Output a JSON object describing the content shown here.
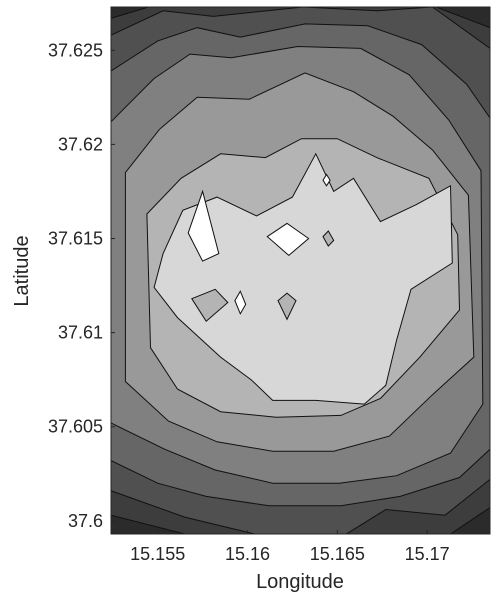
{
  "chart_data": {
    "type": "contour",
    "title": "",
    "xlabel": "Longitude",
    "ylabel": "Latitude",
    "xlim": [
      15.1524,
      15.1735
    ],
    "ylim": [
      37.5993,
      37.6273
    ],
    "xticks": [
      15.155,
      15.16,
      15.165,
      15.17
    ],
    "xtick_labels": [
      "15.155",
      "15.16",
      "15.165",
      "15.17"
    ],
    "yticks": [
      37.6,
      37.605,
      37.61,
      37.615,
      37.62,
      37.625
    ],
    "ytick_labels": [
      "37.6",
      "37.605",
      "37.61",
      "37.615",
      "37.62",
      "37.625"
    ],
    "colormap": "gray",
    "grid": false,
    "legend": "none",
    "levels": [
      {
        "level": 1,
        "fill": "#2b2b2b",
        "contours": [
          [
            [
              15.1524,
              37.6273
            ],
            [
              15.1735,
              37.6273
            ],
            [
              15.1735,
              37.5993
            ],
            [
              15.1524,
              37.5993
            ]
          ]
        ]
      },
      {
        "level": 2,
        "fill": "#3d3d3d",
        "contours": [
          [
            [
              15.1524,
              37.6267
            ],
            [
              15.1545,
              37.6273
            ],
            [
              15.1705,
              37.6273
            ],
            [
              15.1735,
              37.6262
            ],
            [
              15.1735,
              37.6007
            ],
            [
              15.1713,
              37.5993
            ],
            [
              15.1565,
              37.5993
            ],
            [
              15.1524,
              37.6003
            ]
          ]
        ]
      },
      {
        "level": 3,
        "fill": "#505050",
        "contours": [
          [
            [
              15.1524,
              37.6258
            ],
            [
              15.1553,
              37.6271
            ],
            [
              15.1581,
              37.6268
            ],
            [
              15.1631,
              37.6273
            ],
            [
              15.1672,
              37.6271
            ],
            [
              15.1703,
              37.6273
            ],
            [
              15.1735,
              37.6251
            ],
            [
              15.1735,
              37.6022
            ],
            [
              15.171,
              37.6003
            ],
            [
              15.1677,
              37.6006
            ],
            [
              15.1655,
              37.5993
            ],
            [
              15.1604,
              37.5993
            ],
            [
              15.1565,
              37.6002
            ],
            [
              15.1524,
              37.6016
            ]
          ]
        ]
      },
      {
        "level": 4,
        "fill": "#666666",
        "contours": [
          [
            [
              15.1524,
              37.6239
            ],
            [
              15.155,
              37.6255
            ],
            [
              15.1572,
              37.6262
            ],
            [
              15.1596,
              37.6257
            ],
            [
              15.1632,
              37.6264
            ],
            [
              15.1667,
              37.6263
            ],
            [
              15.1697,
              37.6253
            ],
            [
              15.1722,
              37.6232
            ],
            [
              15.1735,
              37.6214
            ],
            [
              15.1735,
              37.6038
            ],
            [
              15.1718,
              37.6023
            ],
            [
              15.1685,
              37.6013
            ],
            [
              15.1652,
              37.6008
            ],
            [
              15.1612,
              37.6008
            ],
            [
              15.1577,
              37.6013
            ],
            [
              15.155,
              37.602
            ],
            [
              15.1524,
              37.6032
            ]
          ]
        ]
      },
      {
        "level": 5,
        "fill": "#808080",
        "contours": [
          [
            [
              15.1524,
              37.6212
            ],
            [
              15.1548,
              37.6235
            ],
            [
              15.1568,
              37.6248
            ],
            [
              15.1591,
              37.6246
            ],
            [
              15.1628,
              37.6252
            ],
            [
              15.1663,
              37.6251
            ],
            [
              15.169,
              37.6237
            ],
            [
              15.1712,
              37.6213
            ],
            [
              15.173,
              37.6186
            ],
            [
              15.1731,
              37.6062
            ],
            [
              15.1713,
              37.6036
            ],
            [
              15.1683,
              37.6024
            ],
            [
              15.1651,
              37.602
            ],
            [
              15.1614,
              37.602
            ],
            [
              15.1582,
              37.6027
            ],
            [
              15.1554,
              37.6038
            ],
            [
              15.1524,
              37.6052
            ]
          ]
        ]
      },
      {
        "level": 6,
        "fill": "#999999",
        "contours": [
          [
            [
              15.1532,
              37.6185
            ],
            [
              15.1551,
              37.6208
            ],
            [
              15.1572,
              37.6225
            ],
            [
              15.1601,
              37.6224
            ],
            [
              15.1632,
              37.6238
            ],
            [
              15.1659,
              37.6228
            ],
            [
              15.1681,
              37.6215
            ],
            [
              15.1703,
              37.6197
            ],
            [
              15.1723,
              37.6173
            ],
            [
              15.1726,
              37.6087
            ],
            [
              15.1703,
              37.6067
            ],
            [
              15.1679,
              37.6045
            ],
            [
              15.1648,
              37.6037
            ],
            [
              15.1614,
              37.6037
            ],
            [
              15.1583,
              37.6042
            ],
            [
              15.1556,
              37.6053
            ],
            [
              15.1532,
              37.6074
            ]
          ]
        ]
      },
      {
        "level": 7,
        "fill": "#b4b4b4",
        "contours": [
          [
            [
              15.1544,
              37.6163
            ],
            [
              15.1563,
              37.6182
            ],
            [
              15.1585,
              37.6195
            ],
            [
              15.161,
              37.6193
            ],
            [
              15.163,
              37.6203
            ],
            [
              15.165,
              37.6203
            ],
            [
              15.1672,
              37.6193
            ],
            [
              15.1701,
              37.6182
            ],
            [
              15.1717,
              37.6152
            ],
            [
              15.1718,
              37.6112
            ],
            [
              15.1696,
              37.6087
            ],
            [
              15.1674,
              37.6065
            ],
            [
              15.1652,
              37.6056
            ],
            [
              15.1616,
              37.6055
            ],
            [
              15.1585,
              37.6058
            ],
            [
              15.1561,
              37.607
            ],
            [
              15.1546,
              37.6092
            ]
          ]
        ]
      },
      {
        "level": 8,
        "fill": "#d7d7d7",
        "contours": [
          [
            [
              15.1553,
              37.6142
            ],
            [
              15.1564,
              37.6165
            ],
            [
              15.1583,
              37.6172
            ],
            [
              15.1605,
              37.6162
            ],
            [
              15.1625,
              37.6172
            ],
            [
              15.1638,
              37.6195
            ],
            [
              15.1648,
              37.6175
            ],
            [
              15.1659,
              37.6182
            ],
            [
              15.1674,
              37.6159
            ],
            [
              15.1694,
              37.6168
            ],
            [
              15.1713,
              37.6178
            ],
            [
              15.1714,
              37.6137
            ],
            [
              15.1691,
              37.6123
            ],
            [
              15.1683,
              37.6096
            ],
            [
              15.1677,
              37.6072
            ],
            [
              15.1665,
              37.6062
            ],
            [
              15.1638,
              37.6064
            ],
            [
              15.1614,
              37.6064
            ],
            [
              15.1602,
              37.6075
            ],
            [
              15.1585,
              37.6087
            ],
            [
              15.1561,
              37.6108
            ],
            [
              15.1548,
              37.6124
            ]
          ]
        ]
      },
      {
        "level": 9,
        "fill": "#ffffff",
        "contours": [
          [
            [
              15.1567,
              37.6153
            ],
            [
              15.1575,
              37.6175
            ],
            [
              15.1584,
              37.6142
            ],
            [
              15.1575,
              37.6138
            ]
          ],
          [
            [
              15.1611,
              37.6151
            ],
            [
              15.1622,
              37.6158
            ],
            [
              15.1634,
              37.615
            ],
            [
              15.1623,
              37.6141
            ]
          ],
          [
            [
              15.1593,
              37.6117
            ],
            [
              15.1596,
              37.6122
            ],
            [
              15.1599,
              37.6115
            ],
            [
              15.1596,
              37.611
            ]
          ],
          [
            [
              15.1642,
              37.6181
            ],
            [
              15.1644,
              37.6184
            ],
            [
              15.1646,
              37.6181
            ],
            [
              15.1644,
              37.6178
            ]
          ]
        ]
      },
      {
        "level": 7,
        "fill": "#b4b4b4",
        "contours": [
          [
            [
              15.1569,
              37.6118
            ],
            [
              15.1582,
              37.6123
            ],
            [
              15.1589,
              37.6116
            ],
            [
              15.1577,
              37.6106
            ]
          ],
          [
            [
              15.1617,
              37.6117
            ],
            [
              15.1622,
              37.6121
            ],
            [
              15.1627,
              37.6117
            ],
            [
              15.1622,
              37.6107
            ]
          ],
          [
            [
              15.1642,
              37.6151
            ],
            [
              15.1645,
              37.6146
            ],
            [
              15.1648,
              37.6149
            ],
            [
              15.1645,
              37.6154
            ]
          ]
        ]
      }
    ]
  }
}
